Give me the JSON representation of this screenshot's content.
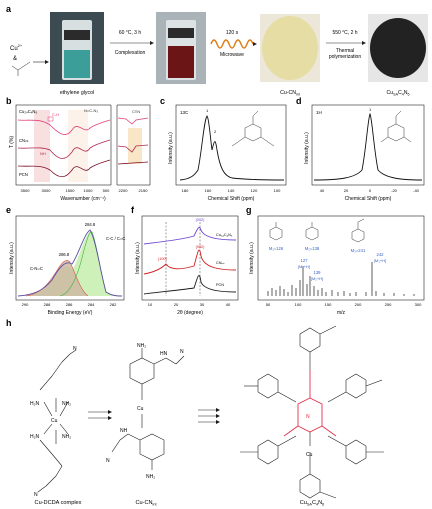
{
  "panel_letters": {
    "a": "a",
    "b": "b",
    "c": "c",
    "d": "d",
    "e": "e",
    "f": "f",
    "g": "g",
    "h": "h"
  },
  "panel_a": {
    "reagent_cu": "Cu",
    "reagent_cu_charge": "2+",
    "reagent_amp": "&",
    "solvent_label": "ethylene glycol",
    "step1_cond": "60 °C, 3 h",
    "step1_name": "Complexation",
    "step2_cond": "120 s",
    "step2_name": "Microwave",
    "intermediate_label": "Cu-CN",
    "intermediate_sub": "int",
    "step3_cond": "550 °C, 2 h",
    "step3_name_1": "Thermal",
    "step3_name_2": "polymerization",
    "product_label": "Cu",
    "product_sub": "SA",
    "product_rest": "C",
    "product_sub2": "4",
    "product_rest2": "N",
    "product_sub3": "6",
    "colors": {
      "vial1_liquid": "#3c9e98",
      "vial2_liquid": "#6b1517",
      "powder1": "#e6dda4",
      "powder2": "#222222",
      "coil": "#e07a10"
    }
  },
  "panel_b": {
    "ylabel": "T (%)",
    "xlabel": "Wavenumber (cm⁻¹)",
    "series_labels": [
      "Cu₂₄C₄N₆",
      "CNᵢₙₜ",
      "PCN"
    ],
    "annot_ch": "C-H",
    "annot_nh": "NH",
    "annot_ncnh": "N=C-N₃",
    "annot_cn": "C≡N",
    "xticks": [
      "3500",
      "3000",
      "1500",
      "1000",
      "500",
      "2200",
      "2150"
    ],
    "colors": {
      "s1": "#e0407a",
      "s2": "#b0284e",
      "s3": "#7a0f25",
      "band_nh": "#f3c9cc",
      "band_cn": "#f6e0b8"
    }
  },
  "panel_c": {
    "nucleus": "13C",
    "xlabel": "Chemical Shift (ppm)",
    "ylabel": "Intensity (a.u.)",
    "xticks": [
      "180",
      "160",
      "140",
      "120",
      "100"
    ],
    "peak_labels": [
      "1",
      "2"
    ]
  },
  "panel_d": {
    "nucleus": "1H",
    "xlabel": "Chemical Shift (ppm)",
    "ylabel": "Intensity (a.u.)",
    "xticks": [
      "40",
      "20",
      "0",
      "-20",
      "-40"
    ],
    "peak_label": "1"
  },
  "panel_e": {
    "xlabel": "Binding Energy (eV)",
    "ylabel": "Intensity (a.u.)",
    "xticks": [
      "290",
      "288",
      "286",
      "284",
      "282"
    ],
    "peaks": [
      {
        "label": "C-N=C",
        "position": "286.8"
      },
      {
        "label": "C-C / C=C",
        "position": "284.8"
      }
    ],
    "colors": {
      "envelope": "#5a4fa0",
      "fill_left": "#cdb9a2",
      "fill_right": "#c9efb3",
      "fill_left_line": "#e05050",
      "fill_right_line": "#40b040"
    }
  },
  "panel_f": {
    "xlabel": "2θ (degree)",
    "ylabel": "Intensity (a.u.)",
    "xticks": [
      "10",
      "20",
      "30",
      "40"
    ],
    "series_labels": [
      "Cu₂₄C₄N₆",
      "CNᵢₙₜ",
      "PCN"
    ],
    "peak_tags": [
      "(002)",
      "(002)",
      "(100)"
    ],
    "colors": {
      "s1": "#6a40d0",
      "s2": "#d02020",
      "s3": "#1a1a1a"
    }
  },
  "panel_g": {
    "xlabel": "m/z",
    "ylabel": "Intensity (a.u.)",
    "xticks": [
      "50",
      "100",
      "150",
      "200",
      "250",
      "300"
    ],
    "mass_labels": [
      "M₁=126",
      "M₂=138",
      "M₃=241"
    ],
    "peak_labels": [
      "127",
      "[M₁+H]",
      "139",
      "[M₂+H]",
      "242",
      "[M₃+H]"
    ],
    "colors": {
      "label": "#3a64c8",
      "bar": "#1a1a1a"
    }
  },
  "panel_h": {
    "captions": [
      "Cu-DCDA complex",
      "Cu-CN",
      "Cu"
    ],
    "caption_subs": [
      "",
      "int",
      "SA"
    ],
    "caption_rest": [
      "",
      "",
      "C"
    ],
    "caption_sub2": [
      "",
      "",
      "4"
    ],
    "caption_rest2": [
      "",
      "",
      "N"
    ],
    "caption_sub3": [
      "",
      "",
      "6"
    ],
    "atom_labels": {
      "n": "N",
      "cu": "Cu",
      "nh": "NH",
      "nh2": "NH₂",
      "h2n": "H₂N",
      "hn": "HN"
    },
    "colors": {
      "highlight": "#e0304a",
      "bond": "#1a1a1a"
    }
  }
}
